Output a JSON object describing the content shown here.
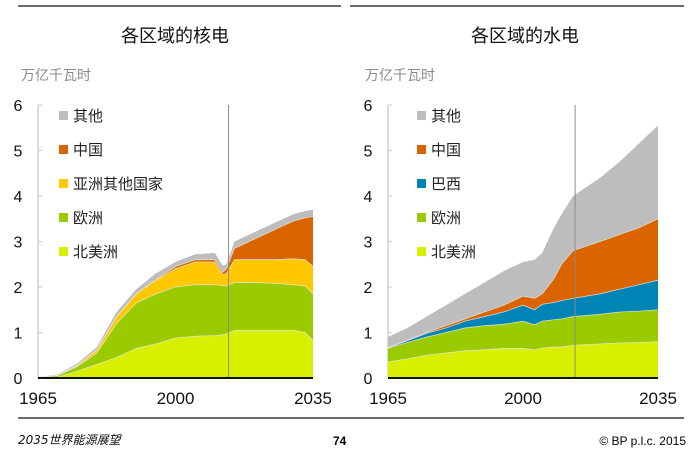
{
  "footer": {
    "publication": "2035世界能源展望",
    "page_number": "74",
    "copyright": "© BP p.l.c. 2015"
  },
  "chart_data": [
    {
      "type": "area",
      "stacked": true,
      "title": "各区域的核电",
      "ylabel": "万亿千瓦时",
      "xlabel": "",
      "xlim": [
        1965,
        2035
      ],
      "ylim": [
        0,
        6
      ],
      "yticks": [
        0,
        1,
        2,
        3,
        4,
        5,
        6
      ],
      "xticks": [
        1965,
        2000,
        2035
      ],
      "divider_year": 2013.5,
      "grid": false,
      "legend_position": "top-left",
      "x": [
        1965,
        1970,
        1975,
        1980,
        1985,
        1990,
        1995,
        2000,
        2005,
        2010,
        2012,
        2013,
        2015,
        2020,
        2025,
        2030,
        2033,
        2035
      ],
      "series": [
        {
          "name": "北美洲",
          "color": "#d8f000",
          "values": [
            0.0,
            0.02,
            0.15,
            0.3,
            0.45,
            0.65,
            0.75,
            0.88,
            0.92,
            0.93,
            0.95,
            0.97,
            1.05,
            1.05,
            1.05,
            1.05,
            1.0,
            0.82
          ]
        },
        {
          "name": "欧洲",
          "color": "#9acb00",
          "values": [
            0.01,
            0.03,
            0.1,
            0.25,
            0.75,
            1.0,
            1.1,
            1.12,
            1.13,
            1.12,
            1.08,
            1.05,
            1.05,
            1.05,
            1.03,
            1.0,
            1.02,
            1.03
          ]
        },
        {
          "name": "亚洲其他国家",
          "color": "#ffc800",
          "values": [
            0.0,
            0.01,
            0.03,
            0.07,
            0.15,
            0.2,
            0.3,
            0.4,
            0.5,
            0.5,
            0.24,
            0.28,
            0.5,
            0.5,
            0.52,
            0.57,
            0.58,
            0.6
          ]
        },
        {
          "name": "中国",
          "color": "#d96400",
          "values": [
            0.0,
            0.0,
            0.0,
            0.0,
            0.0,
            0.0,
            0.01,
            0.05,
            0.05,
            0.05,
            0.05,
            0.1,
            0.25,
            0.45,
            0.65,
            0.83,
            0.92,
            1.1
          ]
        },
        {
          "name": "其他",
          "color": "#bdbdbd",
          "values": [
            0.01,
            0.02,
            0.04,
            0.06,
            0.1,
            0.1,
            0.14,
            0.1,
            0.12,
            0.15,
            0.15,
            0.1,
            0.15,
            0.15,
            0.15,
            0.15,
            0.15,
            0.15
          ]
        }
      ]
    },
    {
      "type": "area",
      "stacked": true,
      "title": "各区域的水电",
      "ylabel": "万亿千瓦时",
      "xlabel": "",
      "xlim": [
        1965,
        2035
      ],
      "ylim": [
        0,
        6
      ],
      "yticks": [
        0,
        1,
        2,
        3,
        4,
        5,
        6
      ],
      "xticks": [
        1965,
        2000,
        2035
      ],
      "divider_year": 2013.5,
      "grid": false,
      "legend_position": "top-left",
      "x": [
        1965,
        1970,
        1975,
        1980,
        1985,
        1990,
        1995,
        2000,
        2003,
        2005,
        2008,
        2010,
        2013,
        2020,
        2025,
        2030,
        2035
      ],
      "series": [
        {
          "name": "北美洲",
          "color": "#d8f000",
          "values": [
            0.35,
            0.42,
            0.5,
            0.55,
            0.6,
            0.62,
            0.65,
            0.65,
            0.62,
            0.66,
            0.68,
            0.68,
            0.72,
            0.75,
            0.77,
            0.78,
            0.8
          ]
        },
        {
          "name": "欧洲",
          "color": "#9acb00",
          "values": [
            0.3,
            0.36,
            0.4,
            0.45,
            0.5,
            0.53,
            0.53,
            0.6,
            0.55,
            0.59,
            0.6,
            0.62,
            0.63,
            0.65,
            0.68,
            0.69,
            0.7
          ]
        },
        {
          "name": "巴西",
          "color": "#0083b5",
          "values": [
            0.01,
            0.04,
            0.08,
            0.1,
            0.15,
            0.2,
            0.27,
            0.35,
            0.33,
            0.37,
            0.38,
            0.4,
            0.4,
            0.45,
            0.5,
            0.58,
            0.65
          ]
        },
        {
          "name": "中国",
          "color": "#d96400",
          "values": [
            0.01,
            0.01,
            0.02,
            0.05,
            0.05,
            0.1,
            0.15,
            0.2,
            0.25,
            0.23,
            0.52,
            0.8,
            1.05,
            1.15,
            1.2,
            1.25,
            1.35
          ]
        },
        {
          "name": "其他",
          "color": "#bdbdbd",
          "values": [
            0.23,
            0.27,
            0.35,
            0.45,
            0.55,
            0.65,
            0.75,
            0.75,
            0.85,
            0.9,
            1.12,
            1.1,
            1.2,
            1.4,
            1.6,
            1.85,
            2.05
          ]
        }
      ]
    }
  ]
}
